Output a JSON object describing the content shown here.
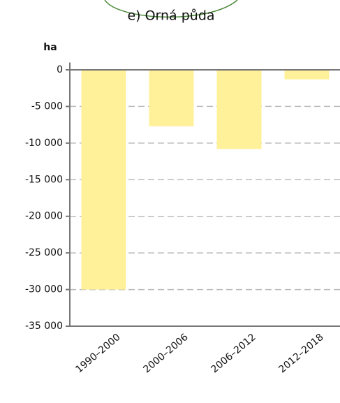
{
  "chart_data": {
    "type": "bar",
    "title": "e) Orná půda",
    "y_label": "ha",
    "categories": [
      "1990–2000",
      "2000–2006",
      "2006–2012",
      "2012–2018"
    ],
    "values": [
      -30000,
      -7700,
      -10800,
      -1300
    ],
    "color": "#fff09a",
    "ylim": [
      -35000,
      1000
    ],
    "yticks": [
      0,
      {
        "value": -5000,
        "label": "-5 000"
      },
      {
        "value": -10000,
        "label": "-10 000"
      },
      {
        "value": -15000,
        "label": "-15 000"
      },
      {
        "value": -20000,
        "label": "-20 000"
      },
      {
        "value": -25000,
        "label": "-25 000"
      },
      {
        "value": -30000,
        "label": "-30 000"
      },
      {
        "value": -35000,
        "label": "-35 000"
      }
    ],
    "grid": true
  }
}
